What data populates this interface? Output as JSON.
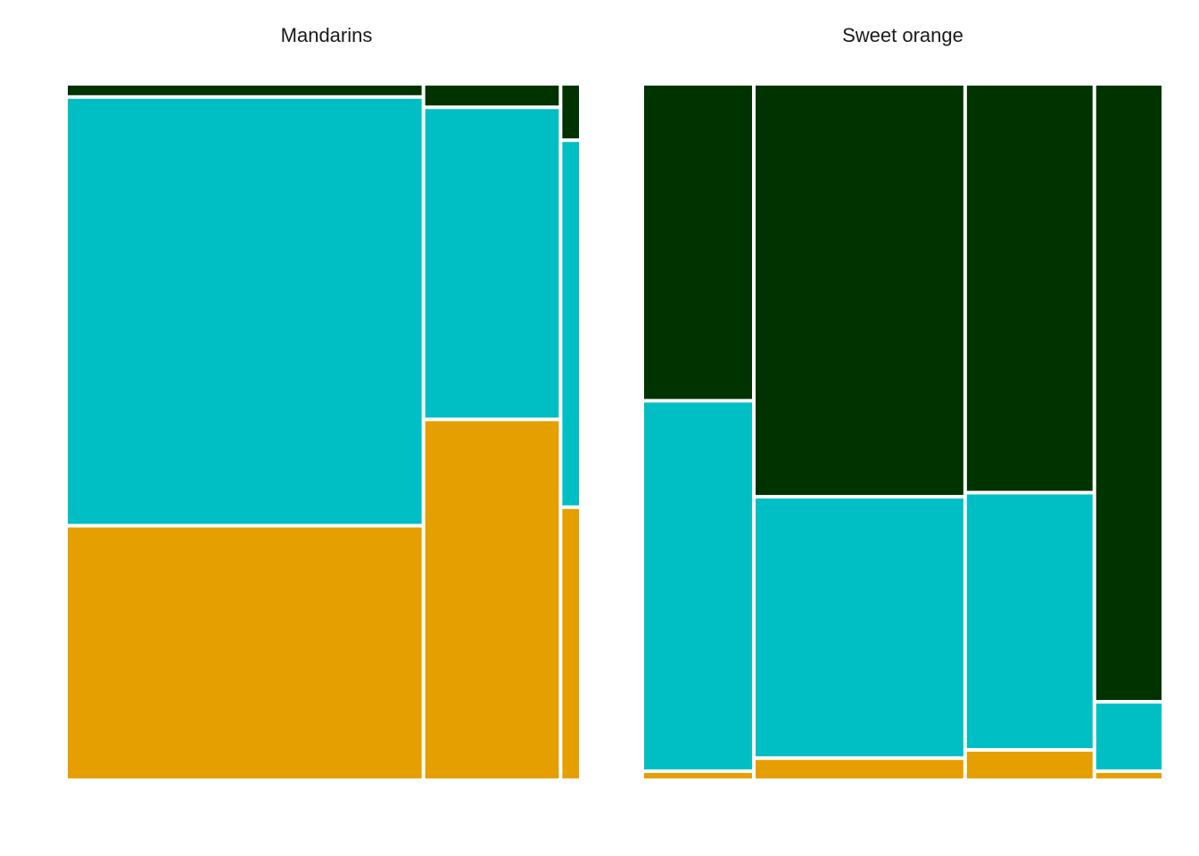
{
  "chart_data": {
    "type": "mosaic",
    "colors": {
      "dark_green": "#003300",
      "teal": "#00BFC4",
      "orange": "#E69F00"
    },
    "segment_order_top_to_bottom": [
      "dark_green",
      "teal",
      "orange"
    ],
    "panels": [
      {
        "title": "Mandarins",
        "columns": [
          {
            "width_share": 0.702,
            "segments": [
              0.014,
              0.62,
              0.366
            ]
          },
          {
            "width_share": 0.265,
            "segments": [
              0.029,
              0.45,
              0.521
            ]
          },
          {
            "width_share": 0.033,
            "segments": [
              0.077,
              0.53,
              0.393
            ]
          }
        ]
      },
      {
        "title": "Sweet orange",
        "columns": [
          {
            "width_share": 0.213,
            "segments": [
              0.457,
              0.535,
              0.008
            ]
          },
          {
            "width_share": 0.41,
            "segments": [
              0.597,
              0.376,
              0.027
            ]
          },
          {
            "width_share": 0.248,
            "segments": [
              0.591,
              0.37,
              0.039
            ]
          },
          {
            "width_share": 0.129,
            "segments": [
              0.896,
              0.096,
              0.008
            ]
          }
        ]
      }
    ]
  }
}
